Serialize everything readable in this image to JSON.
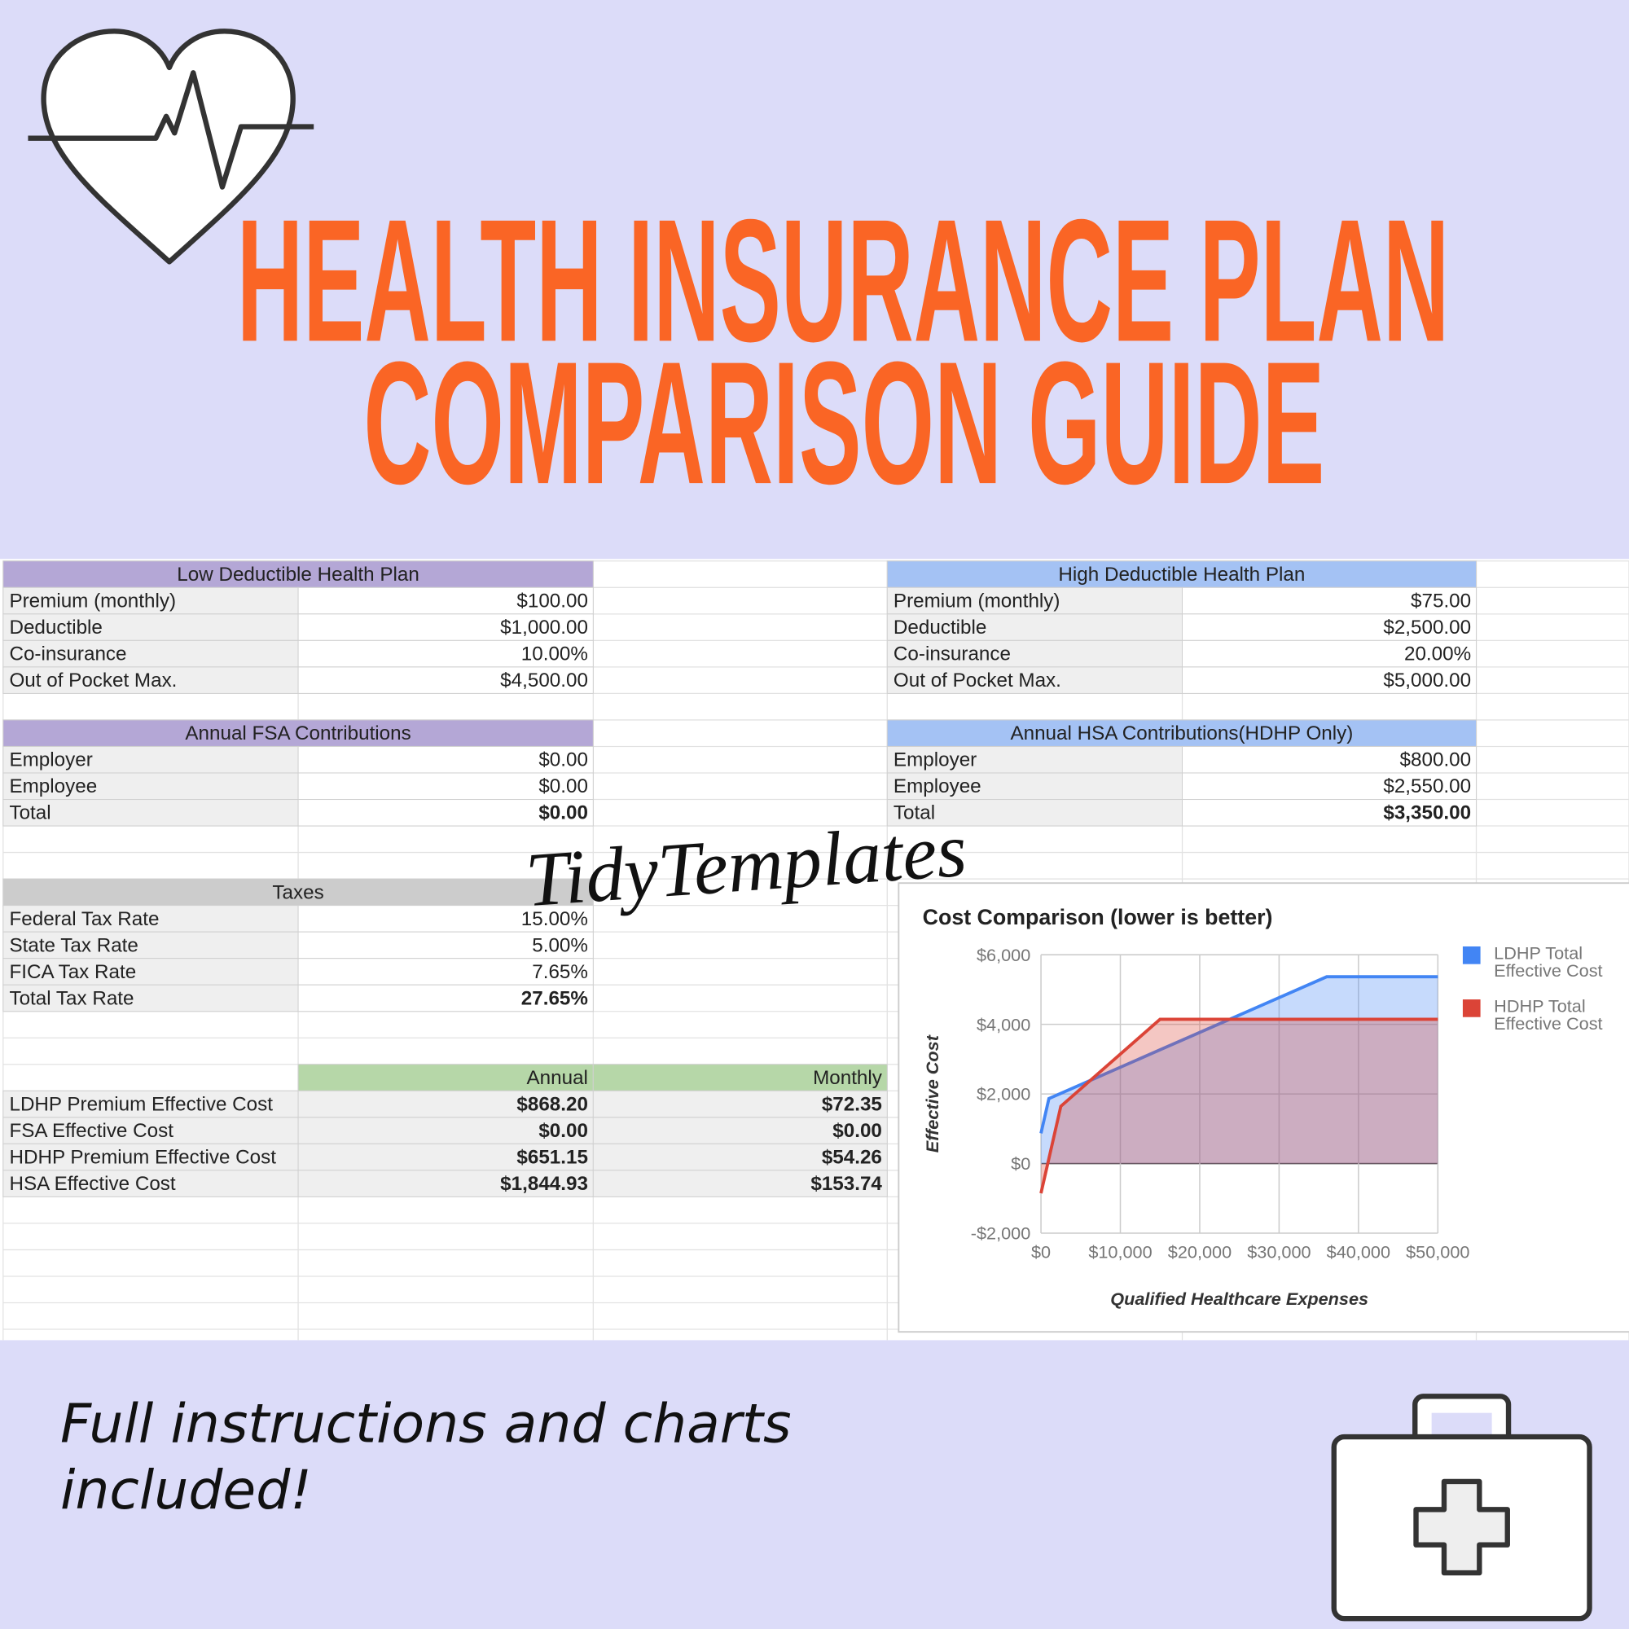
{
  "header": {
    "title_lines": [
      "HEALTH INSURANCE PLAN",
      "COMPARISON GUIDE"
    ]
  },
  "tables": [
    {
      "title": "Low Deductible Health Plan",
      "rows": [
        [
          "Premium (monthly)",
          "$100.00"
        ],
        [
          "Deductible",
          "$1,000.00"
        ],
        [
          "Co-insurance",
          "10.00%"
        ],
        [
          "Out of Pocket Max.",
          "$4,500.00"
        ]
      ]
    },
    {
      "title": "High Deductible Health Plan",
      "rows": [
        [
          "Premium (monthly)",
          "$75.00"
        ],
        [
          "Deductible",
          "$2,500.00"
        ],
        [
          "Co-insurance",
          "20.00%"
        ],
        [
          "Out of Pocket Max.",
          "$5,000.00"
        ]
      ]
    },
    {
      "title": "Annual FSA Contributions",
      "rows": [
        [
          "Employer",
          "$0.00"
        ],
        [
          "Employee",
          "$0.00"
        ],
        [
          "Total",
          "$0.00"
        ]
      ]
    },
    {
      "title": "Annual HSA Contributions(HDHP Only)",
      "rows": [
        [
          "Employer",
          "$800.00"
        ],
        [
          "Employee",
          "$2,550.00"
        ],
        [
          "Total",
          "$3,350.00"
        ]
      ]
    },
    {
      "title": "Taxes",
      "rows": [
        [
          "Federal Tax Rate",
          "15.00%"
        ],
        [
          "State Tax Rate",
          "5.00%"
        ],
        [
          "FICA Tax Rate",
          "7.65%"
        ],
        [
          "Total Tax Rate",
          "27.65%"
        ]
      ]
    }
  ],
  "cost_table": {
    "columns": [
      "Annual",
      "Monthly"
    ],
    "rows": [
      [
        "LDHP Premium Effective Cost",
        "$868.20",
        "$72.35"
      ],
      [
        "FSA Effective Cost",
        "$0.00",
        "$0.00"
      ],
      [
        "HDHP Premium Effective Cost",
        "$651.15",
        "$54.26"
      ],
      [
        "HSA Effective Cost",
        "$1,844.93",
        "$153.74"
      ]
    ]
  },
  "watermark": "TidyTemplates",
  "chart_data": {
    "type": "area",
    "title": "Cost Comparison (lower is better)",
    "x_label": "Qualified Healthcare Expenses",
    "y_label": "Effective Cost",
    "x": [
      0,
      1000,
      2500,
      15000,
      36000,
      50000
    ],
    "series": [
      {
        "name": "LDHP Total Effective Cost",
        "color": "#4285f4",
        "values": [
          868,
          1868,
          2018,
          3268,
          5368,
          5368
        ]
      },
      {
        "name": "HDHP Total Effective Cost",
        "color": "#db4437",
        "values": [
          -854,
          146,
          1646,
          4146,
          4146,
          4146
        ]
      }
    ],
    "xlim": [
      0,
      50000
    ],
    "ylim": [
      -2000,
      6000
    ],
    "xticks": [
      {
        "value": 0,
        "label": "$0"
      },
      {
        "value": 10000,
        "label": "$10,000"
      },
      {
        "value": 20000,
        "label": "$20,000"
      },
      {
        "value": 30000,
        "label": "$30,000"
      },
      {
        "value": 40000,
        "label": "$40,000"
      },
      {
        "value": 50000,
        "label": "$50,000"
      }
    ],
    "yticks": [
      {
        "value": -2000,
        "label": "-$2,000"
      },
      {
        "value": 0,
        "label": "$0"
      },
      {
        "value": 2000,
        "label": "$2,000"
      },
      {
        "value": 4000,
        "label": "$4,000"
      },
      {
        "value": 6000,
        "label": "$6,000"
      }
    ],
    "grid": true,
    "legend": "right"
  },
  "footer": {
    "text_lines": [
      "Full instructions and charts",
      "included!"
    ]
  }
}
